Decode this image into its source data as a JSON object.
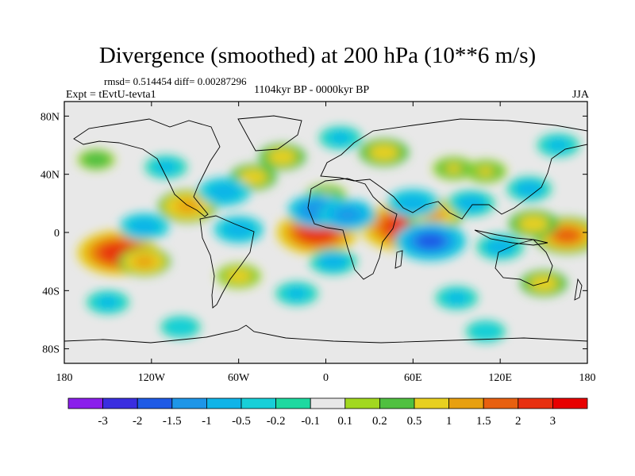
{
  "chart_data": {
    "type": "heatmap",
    "title": "Divergence (smoothed) at 200 hPa (10**6 m/s)",
    "stats": {
      "rmsd_label": "rmsd=",
      "rmsd_value": "0.514454",
      "diff_label": "diff=",
      "diff_value": "0.00287296"
    },
    "experiment": "Expt = tEvtU-tevta1",
    "period": "1104kyr BP - 0000kyr BP",
    "season": "JJA",
    "xlim": [
      -180,
      180
    ],
    "ylim": [
      -90,
      90
    ],
    "xticks": [
      {
        "value": -180,
        "label": "180"
      },
      {
        "value": -120,
        "label": "120W"
      },
      {
        "value": -60,
        "label": "60W"
      },
      {
        "value": 0,
        "label": "0"
      },
      {
        "value": 60,
        "label": "60E"
      },
      {
        "value": 120,
        "label": "120E"
      },
      {
        "value": 180,
        "label": "180"
      }
    ],
    "yticks": [
      {
        "value": 80,
        "label": "80N"
      },
      {
        "value": 40,
        "label": "40N"
      },
      {
        "value": 0,
        "label": "0"
      },
      {
        "value": -40,
        "label": "40S"
      },
      {
        "value": -80,
        "label": "80S"
      }
    ],
    "colorbar": {
      "levels": [
        "-3",
        "-2",
        "-1.5",
        "-1",
        "-0.5",
        "-0.2",
        "-0.1",
        "0.1",
        "0.2",
        "0.5",
        "1",
        "1.5",
        "2",
        "3"
      ],
      "colors": [
        "#8a1eeb",
        "#3a2ee0",
        "#1e5ae6",
        "#1e96e8",
        "#10b4e8",
        "#18cfd8",
        "#1ed9a0",
        "#e8e8e8",
        "#a2d820",
        "#50c040",
        "#e8d020",
        "#e8a010",
        "#e86010",
        "#e83010",
        "#e80000"
      ]
    },
    "anomalies": [
      {
        "lon": -143,
        "lat": -14,
        "value": 2.2
      },
      {
        "lon": -125,
        "lat": -20,
        "value": 1.0
      },
      {
        "lon": -6,
        "lat": 0,
        "value": 2.2
      },
      {
        "lon": 55,
        "lat": 4,
        "value": 2.6
      },
      {
        "lon": 75,
        "lat": 12,
        "value": 1.2
      },
      {
        "lon": 166,
        "lat": -2,
        "value": 1.6
      },
      {
        "lon": 143,
        "lat": 6,
        "value": 0.9
      },
      {
        "lon": -95,
        "lat": 18,
        "value": 1.3
      },
      {
        "lon": -50,
        "lat": 38,
        "value": 0.8
      },
      {
        "lon": -30,
        "lat": 52,
        "value": 0.8
      },
      {
        "lon": 40,
        "lat": 55,
        "value": 0.9
      },
      {
        "lon": 110,
        "lat": 42,
        "value": 0.6
      },
      {
        "lon": -158,
        "lat": 50,
        "value": 0.4
      },
      {
        "lon": 0,
        "lat": 25,
        "value": 0.6
      },
      {
        "lon": 150,
        "lat": -35,
        "value": 0.8
      },
      {
        "lon": 88,
        "lat": 44,
        "value": 0.6
      },
      {
        "lon": -60,
        "lat": -30,
        "value": 0.7
      },
      {
        "lon": 72,
        "lat": -6,
        "value": -1.8
      },
      {
        "lon": 60,
        "lat": 20,
        "value": -1.0
      },
      {
        "lon": -5,
        "lat": 15,
        "value": -1.4
      },
      {
        "lon": 15,
        "lat": 12,
        "value": -1.2
      },
      {
        "lon": 100,
        "lat": 20,
        "value": -0.8
      },
      {
        "lon": -70,
        "lat": 28,
        "value": -1.0
      },
      {
        "lon": -125,
        "lat": 4,
        "value": -0.9
      },
      {
        "lon": -60,
        "lat": 2,
        "value": -0.9
      },
      {
        "lon": 140,
        "lat": 30,
        "value": -0.7
      },
      {
        "lon": 120,
        "lat": -10,
        "value": -0.8
      },
      {
        "lon": 5,
        "lat": -20,
        "value": -0.8
      },
      {
        "lon": -20,
        "lat": -42,
        "value": -0.6
      },
      {
        "lon": 90,
        "lat": -45,
        "value": -0.6
      },
      {
        "lon": -150,
        "lat": -48,
        "value": -0.6
      },
      {
        "lon": -110,
        "lat": 45,
        "value": -0.6
      },
      {
        "lon": 10,
        "lat": 65,
        "value": -0.6
      },
      {
        "lon": 160,
        "lat": 60,
        "value": -0.6
      },
      {
        "lon": -100,
        "lat": -65,
        "value": -0.5
      },
      {
        "lon": 110,
        "lat": -68,
        "value": -0.5
      }
    ]
  }
}
